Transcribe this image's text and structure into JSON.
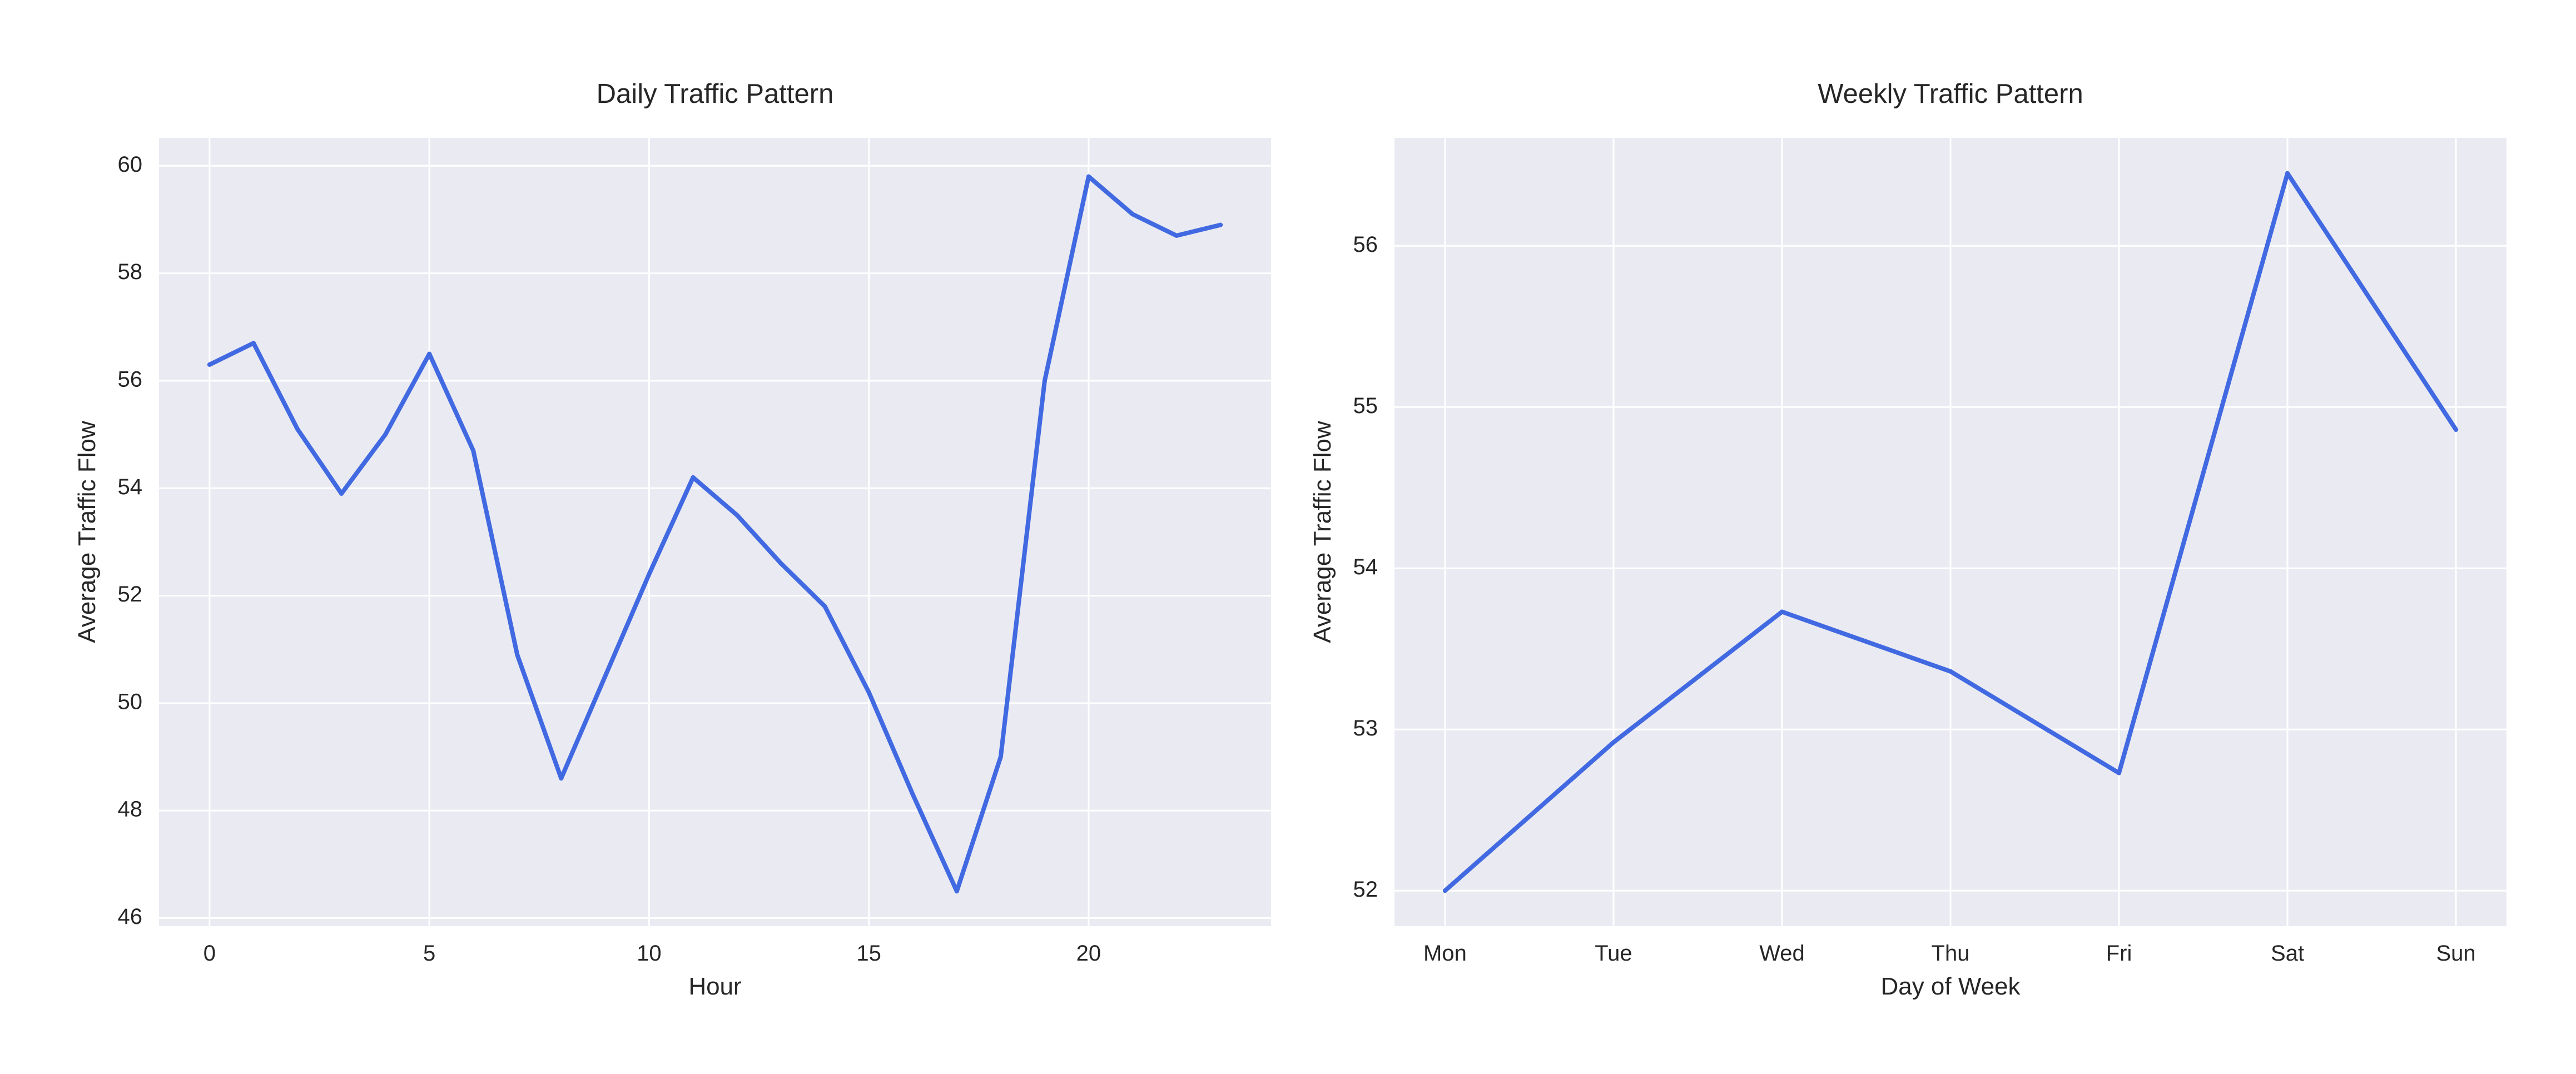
{
  "chart_data": [
    {
      "type": "line",
      "title": "Daily Traffic Pattern",
      "xlabel": "Hour",
      "ylabel": "Average Traffic Flow",
      "x": [
        0,
        1,
        2,
        3,
        4,
        5,
        6,
        7,
        8,
        9,
        10,
        11,
        12,
        13,
        14,
        15,
        16,
        17,
        18,
        19,
        20,
        21,
        22,
        23
      ],
      "series": [
        {
          "values": [
            56.3,
            56.7,
            55.1,
            53.9,
            55.0,
            56.5,
            54.7,
            50.9,
            48.6,
            50.5,
            52.4,
            54.2,
            53.5,
            52.6,
            51.8,
            50.2,
            48.3,
            46.5,
            49.0,
            56.0,
            59.8,
            59.1,
            58.7,
            58.9
          ],
          "color": "#4169e1"
        }
      ],
      "xticks": [
        0,
        5,
        10,
        15,
        20
      ],
      "yticks": [
        46,
        48,
        50,
        52,
        54,
        56,
        58,
        60
      ],
      "xlim": [
        -1.15,
        24.15
      ],
      "ylim": [
        45.85,
        60.52
      ],
      "grid": true
    },
    {
      "type": "line",
      "title": "Weekly Traffic Pattern",
      "xlabel": "Day of Week",
      "ylabel": "Average Traffic Flow",
      "categories": [
        "Mon",
        "Tue",
        "Wed",
        "Thu",
        "Fri",
        "Sat",
        "Sun"
      ],
      "series": [
        {
          "values": [
            52.0,
            52.92,
            53.73,
            53.36,
            52.73,
            56.45,
            54.86
          ],
          "color": "#4169e1"
        }
      ],
      "yticks": [
        52,
        53,
        54,
        55,
        56
      ],
      "xlim": [
        -0.3,
        6.3
      ],
      "ylim": [
        51.78,
        56.67
      ],
      "grid": true
    }
  ]
}
